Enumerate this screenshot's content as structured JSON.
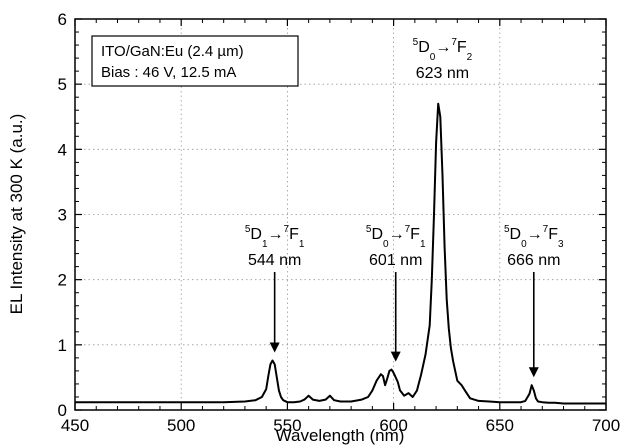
{
  "chart_data": {
    "type": "line",
    "xlabel": "Wavelength (nm)",
    "ylabel": "EL Intensity at 300 K (a.u.)",
    "xlim": [
      450,
      700
    ],
    "ylim": [
      0,
      6
    ],
    "x_ticks": [
      "450",
      "500",
      "550",
      "600",
      "650",
      "700"
    ],
    "y_ticks": [
      "0",
      "1",
      "2",
      "3",
      "4",
      "5",
      "6"
    ],
    "grid": true,
    "legend_box": {
      "line1": "ITO/GaN:Eu (2.4 µm)",
      "line2": "Bias : 46 V, 12.5 mA",
      "placement": "top-left"
    },
    "peaks": [
      {
        "id": "d1f1",
        "wavelength": 544,
        "intensity": 0.76,
        "upper_level": "D",
        "upper_sub": "1",
        "lower_level": "F",
        "lower_sub": "1",
        "sup": "5",
        "sup2": "7",
        "label": "544 nm",
        "arrow": true
      },
      {
        "id": "d0f1",
        "wavelength": 601,
        "intensity": 0.62,
        "upper_level": "D",
        "upper_sub": "0",
        "lower_level": "F",
        "lower_sub": "1",
        "sup": "5",
        "sup2": "7",
        "label": "601 nm",
        "arrow": true
      },
      {
        "id": "d0f2",
        "wavelength": 623,
        "intensity": 4.7,
        "upper_level": "D",
        "upper_sub": "0",
        "lower_level": "F",
        "lower_sub": "2",
        "sup": "5",
        "sup2": "7",
        "label": "623 nm",
        "arrow": false
      },
      {
        "id": "d0f3",
        "wavelength": 666,
        "intensity": 0.38,
        "upper_level": "D",
        "upper_sub": "0",
        "lower_level": "F",
        "lower_sub": "3",
        "sup": "5",
        "sup2": "7",
        "label": "666 nm",
        "arrow": true
      }
    ],
    "series": [
      {
        "x": [
          450,
          460,
          470,
          480,
          490,
          500,
          510,
          520,
          530,
          535,
          538,
          540,
          541,
          542,
          543,
          544,
          545,
          546,
          547,
          548,
          550,
          553,
          556,
          558,
          560,
          562,
          565,
          568,
          570,
          572,
          575,
          580,
          585,
          588,
          590,
          592,
          594,
          595,
          596,
          597,
          598,
          599,
          600,
          601,
          602,
          603,
          605,
          607,
          609,
          611,
          613,
          615,
          617,
          618,
          619,
          620,
          621,
          622,
          623,
          624,
          625,
          626,
          627,
          628,
          630,
          632,
          634,
          636,
          640,
          645,
          650,
          655,
          660,
          662,
          664,
          665,
          666,
          667,
          668,
          670,
          673,
          676,
          680,
          690,
          700
        ],
        "y": [
          0.12,
          0.12,
          0.12,
          0.12,
          0.12,
          0.12,
          0.12,
          0.12,
          0.13,
          0.15,
          0.2,
          0.32,
          0.52,
          0.7,
          0.76,
          0.7,
          0.5,
          0.3,
          0.2,
          0.15,
          0.12,
          0.12,
          0.13,
          0.16,
          0.22,
          0.16,
          0.14,
          0.16,
          0.22,
          0.15,
          0.13,
          0.13,
          0.16,
          0.2,
          0.3,
          0.45,
          0.55,
          0.52,
          0.38,
          0.48,
          0.6,
          0.62,
          0.57,
          0.5,
          0.43,
          0.3,
          0.22,
          0.26,
          0.2,
          0.3,
          0.55,
          0.85,
          1.3,
          2.0,
          3.0,
          4.1,
          4.7,
          4.5,
          3.6,
          2.5,
          1.7,
          1.25,
          0.95,
          0.75,
          0.45,
          0.38,
          0.28,
          0.18,
          0.14,
          0.13,
          0.12,
          0.12,
          0.12,
          0.14,
          0.25,
          0.38,
          0.3,
          0.18,
          0.13,
          0.12,
          0.11,
          0.11,
          0.1,
          0.1,
          0.1
        ]
      }
    ]
  }
}
